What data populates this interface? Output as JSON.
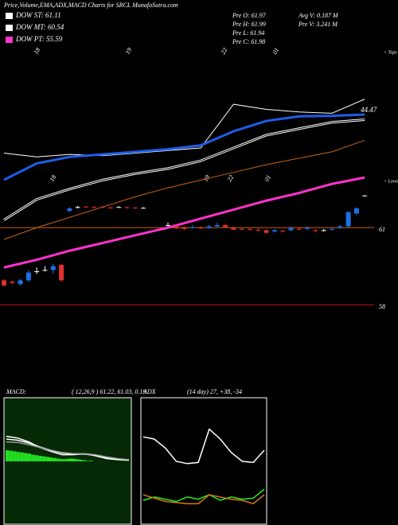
{
  "header": {
    "title": "Price,Volume,EMA,ADX,MACD Charts for SRCL MunafaSutra.com",
    "legend": [
      {
        "label": "DOW ST: 61.11",
        "color": "#ffffff"
      },
      {
        "label": "DOW MT: 60.54",
        "color": "#ffffff"
      },
      {
        "label": "DOW PT: 55.59",
        "color": "#ff33cc"
      }
    ],
    "stats": [
      "Pre O: 61.97",
      "Pre H: 61.99",
      "Pre L: 61.94",
      "Pre C: 61.98",
      "Avg V: 0.187 M",
      "Pre V: 3.241 M"
    ]
  },
  "chart_data": [
    {
      "type": "candlestick",
      "ylim": [
        55,
        68
      ],
      "yticks": [
        61,
        58
      ],
      "ytick_colors": [
        "#c86414",
        "#c81414"
      ],
      "up_color": "#1e6fe8",
      "down_color": "#e0302f",
      "date_labels": [
        "18",
        "19",
        "22",
        "01"
      ],
      "tops_label": "< Tops",
      "lows_label": "< Lows",
      "annotation": "44.47",
      "open": [
        58.95,
        58.9,
        58.8,
        58.95,
        59.3,
        59.35,
        59.35,
        59.55,
        61.65,
        61.8,
        61.82,
        61.8,
        61.8,
        61.78,
        61.8,
        61.79,
        61.78,
        61.77,
        null,
        null,
        61.1,
        61.05,
        61.0,
        61.0,
        61.0,
        61.0,
        61.05,
        61.1,
        61.0,
        60.95,
        60.95,
        60.92,
        60.9,
        60.85,
        60.88,
        60.9,
        60.95,
        60.95,
        60.9,
        60.9,
        60.92,
        61.0,
        61.05,
        61.55,
        62.25
      ],
      "high": [
        59.0,
        58.95,
        59.0,
        59.35,
        59.45,
        59.5,
        59.6,
        59.6,
        61.8,
        61.85,
        61.85,
        61.84,
        61.83,
        61.82,
        61.84,
        61.82,
        61.8,
        61.8,
        null,
        null,
        61.2,
        61.1,
        61.05,
        61.1,
        61.05,
        61.1,
        61.2,
        61.15,
        61.05,
        61.0,
        61.0,
        60.98,
        60.95,
        60.95,
        60.92,
        61.05,
        61.0,
        61.05,
        60.95,
        60.95,
        61.0,
        61.1,
        61.65,
        61.8,
        62.27
      ],
      "low": [
        58.7,
        58.8,
        58.75,
        58.9,
        59.2,
        59.3,
        59.2,
        58.9,
        61.6,
        61.75,
        61.78,
        61.76,
        61.77,
        61.75,
        61.78,
        61.75,
        61.74,
        61.74,
        null,
        null,
        61.05,
        60.95,
        60.9,
        60.95,
        60.95,
        60.95,
        61.0,
        61.0,
        60.9,
        60.9,
        60.88,
        60.85,
        60.75,
        60.8,
        60.8,
        60.85,
        60.9,
        60.9,
        60.82,
        60.85,
        60.88,
        60.95,
        61.0,
        61.5,
        62.23
      ],
      "close": [
        58.75,
        58.85,
        58.95,
        59.25,
        59.3,
        59.35,
        59.5,
        58.95,
        61.75,
        61.8,
        61.8,
        61.78,
        61.79,
        61.76,
        61.8,
        61.77,
        61.76,
        61.77,
        null,
        null,
        61.1,
        60.97,
        60.95,
        61.02,
        60.98,
        61.05,
        61.1,
        61.02,
        60.92,
        60.93,
        60.92,
        60.9,
        60.8,
        60.9,
        60.85,
        60.98,
        60.92,
        61.0,
        60.88,
        60.9,
        60.95,
        61.05,
        61.6,
        61.75,
        62.25
      ],
      "lines": [
        {
          "color": "#ffffff",
          "width": 1,
          "x": [
            0,
            4,
            8,
            12,
            16,
            20,
            24,
            28,
            32,
            36,
            40,
            44
          ],
          "values": [
            63.9,
            63.75,
            63.85,
            63.8,
            63.9,
            64.0,
            64.1,
            65.8,
            65.6,
            65.5,
            65.45,
            66.0
          ]
        },
        {
          "color": "#ffffff",
          "width": 3,
          "x": [
            0,
            4,
            8,
            12,
            16,
            20,
            24,
            28,
            32,
            36,
            40,
            44
          ],
          "values": [
            61.3,
            62.1,
            62.5,
            62.85,
            63.1,
            63.3,
            63.6,
            64.1,
            64.6,
            64.85,
            65.1,
            65.2
          ]
        },
        {
          "color": "#c86414",
          "width": 1,
          "x": [
            0,
            4,
            8,
            12,
            16,
            20,
            24,
            28,
            32,
            36,
            40,
            44
          ],
          "values": [
            60.54,
            61.0,
            61.4,
            61.8,
            62.2,
            62.55,
            62.85,
            63.15,
            63.45,
            63.7,
            63.95,
            64.4
          ]
        },
        {
          "color": "#1e5ee8",
          "width": 3,
          "x": [
            0,
            4,
            8,
            12,
            16,
            20,
            24,
            28,
            32,
            36,
            40,
            44
          ],
          "values": [
            62.86,
            63.5,
            63.75,
            63.85,
            63.95,
            64.05,
            64.2,
            64.75,
            65.15,
            65.33,
            65.35,
            65.4
          ]
        },
        {
          "color": "#ff33cc",
          "width": 3,
          "x": [
            0,
            4,
            8,
            12,
            16,
            20,
            24,
            28,
            32,
            36,
            40,
            44
          ],
          "values": [
            59.45,
            59.75,
            60.1,
            60.4,
            60.7,
            61.0,
            61.35,
            61.7,
            62.05,
            62.35,
            62.7,
            62.95
          ]
        }
      ]
    },
    {
      "type": "macd",
      "label": "MACD:",
      "params": "( 12,26,9 ) 61.22, 61.03, 0.19",
      "ylim": [
        -1,
        1
      ],
      "background": "#062a06",
      "histogram": [
        0.2,
        0.19,
        0.18,
        0.17,
        0.16,
        0.15,
        0.14,
        0.12,
        0.11,
        0.1,
        0.09,
        0.08,
        0.07,
        0.06,
        0.05,
        0.04,
        0.04,
        0.05,
        0.05,
        0.04,
        0.03,
        0.02,
        0.01,
        0.01
      ],
      "histogram_color": "#22dd22",
      "series": [
        {
          "color": "#ffffff",
          "values": [
            0.45,
            0.42,
            0.35,
            0.25,
            0.18,
            0.12,
            0.12,
            0.14,
            0.1,
            0.05,
            0.03,
            0.02
          ]
        },
        {
          "color": "#ffffff",
          "values": [
            0.4,
            0.38,
            0.33,
            0.26,
            0.2,
            0.15,
            0.13,
            0.13,
            0.11,
            0.07,
            0.04,
            0.02
          ]
        },
        {
          "color": "#999999",
          "values": [
            0.35,
            0.34,
            0.3,
            0.25,
            0.2,
            0.16,
            0.14,
            0.14,
            0.12,
            0.08,
            0.05,
            0.03
          ]
        }
      ]
    },
    {
      "type": "line",
      "label": "ADX",
      "params": "(14 day) 27, +38, -34",
      "ylim": [
        0,
        100
      ],
      "background": "#000000",
      "series": [
        {
          "color": "#ffffff",
          "values": [
            72,
            70,
            62,
            50,
            48,
            49,
            79,
            70,
            58,
            50,
            49,
            60
          ]
        },
        {
          "color": "#22ee22",
          "values": [
            15,
            18,
            16,
            14,
            18,
            16,
            20,
            15,
            18,
            16,
            17,
            25
          ]
        },
        {
          "color": "#d87814",
          "values": [
            20,
            17,
            14,
            13,
            12,
            12,
            20,
            18,
            16,
            15,
            12,
            20
          ]
        }
      ]
    }
  ]
}
